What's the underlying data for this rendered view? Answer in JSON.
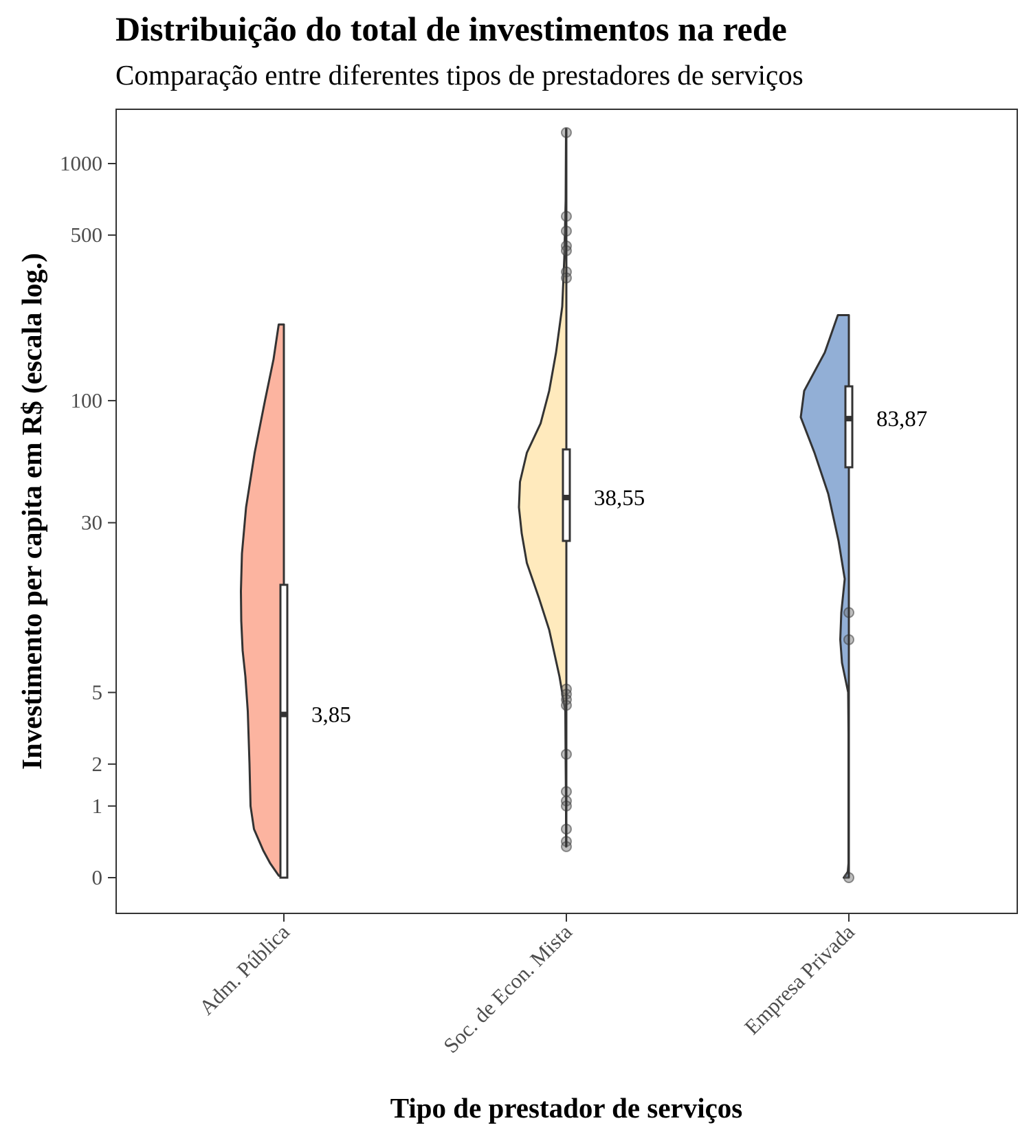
{
  "chart_data": {
    "type": "violin",
    "title": "Distribuição do total de investimentos na rede",
    "subtitle": "Comparação entre diferentes tipos de prestadores de serviços",
    "xlabel": "Tipo de prestador de serviços",
    "ylabel": "Investimento per capita em R$ (escala log.)",
    "yscale": "log(x+1)",
    "ylim": [
      -0.1,
      2000
    ],
    "yticks": [
      0,
      1,
      2,
      5,
      30,
      100,
      500,
      1000
    ],
    "ytick_labels": [
      "0",
      "1",
      "2",
      "5",
      "30",
      "100",
      "500",
      "1000"
    ],
    "grid": false,
    "series": [
      {
        "category": "Adm. Pública",
        "color": "#fcb4a0",
        "median": 3.85,
        "median_label": "3,85",
        "q1": 0,
        "q3": 16,
        "range": [
          0,
          210
        ],
        "density": [
          [
            0,
            0.03
          ],
          [
            0.02,
            0.15
          ],
          [
            0.08,
            0.27
          ],
          [
            0.15,
            0.4
          ],
          [
            0.3,
            0.6
          ],
          [
            0.6,
            0.87
          ],
          [
            1,
            0.97
          ],
          [
            2,
            1
          ],
          [
            4,
            1.05
          ],
          [
            6,
            1.12
          ],
          [
            8,
            1.2
          ],
          [
            11,
            1.24
          ],
          [
            15,
            1.25
          ],
          [
            22,
            1.22
          ],
          [
            35,
            1.1
          ],
          [
            60,
            0.85
          ],
          [
            100,
            0.55
          ],
          [
            150,
            0.3
          ],
          [
            210,
            0.15
          ]
        ],
        "outliers": []
      },
      {
        "category": "Soc. de Econ. Mista",
        "color": "#ffeabd",
        "median": 38.55,
        "median_label": "38,55",
        "q1": 25,
        "q3": 62,
        "range": [
          0.35,
          1400
        ],
        "density": [
          [
            0.35,
            0.01
          ],
          [
            1,
            0.01
          ],
          [
            2,
            0.02
          ],
          [
            4,
            0.03
          ],
          [
            6,
            0.2
          ],
          [
            10,
            0.5
          ],
          [
            14,
            0.8
          ],
          [
            20,
            1.15
          ],
          [
            27,
            1.3
          ],
          [
            35,
            1.38
          ],
          [
            45,
            1.35
          ],
          [
            60,
            1.15
          ],
          [
            80,
            0.75
          ],
          [
            110,
            0.5
          ],
          [
            160,
            0.3
          ],
          [
            250,
            0.12
          ],
          [
            400,
            0.06
          ],
          [
            700,
            0.02
          ],
          [
            1400,
            0.01
          ]
        ],
        "outliers": [
          1350,
          600,
          520,
          450,
          430,
          350,
          330,
          5.2,
          4.9,
          4.6,
          4.3,
          2.3,
          1.3,
          1.1,
          1,
          0.6,
          0.42,
          0.35
        ]
      },
      {
        "category": "Empresa Privada",
        "color": "#92afd6",
        "median": 83.87,
        "median_label": "83,87",
        "q1": 52,
        "q3": 115,
        "range": [
          0,
          230
        ],
        "density": [
          [
            0,
            0.15
          ],
          [
            0.02,
            0.1
          ],
          [
            0.06,
            0.03
          ],
          [
            0.15,
            0.01
          ],
          [
            1,
            0.01
          ],
          [
            3,
            0.01
          ],
          [
            5,
            0.02
          ],
          [
            7,
            0.2
          ],
          [
            9,
            0.25
          ],
          [
            12,
            0.22
          ],
          [
            17,
            0.12
          ],
          [
            25,
            0.3
          ],
          [
            40,
            0.6
          ],
          [
            60,
            1.0
          ],
          [
            85,
            1.4
          ],
          [
            110,
            1.3
          ],
          [
            160,
            0.7
          ],
          [
            230,
            0.32
          ]
        ],
        "outliers": [
          12,
          9,
          0
        ]
      }
    ]
  }
}
